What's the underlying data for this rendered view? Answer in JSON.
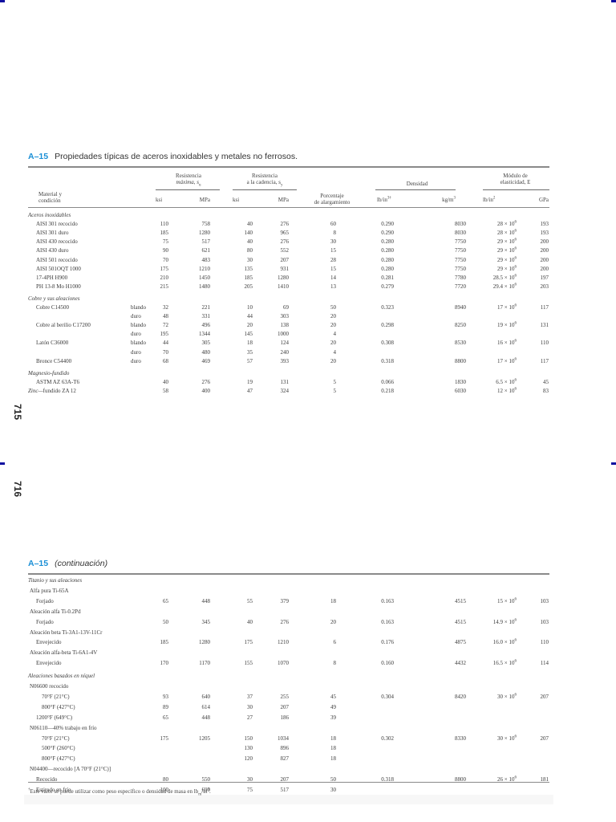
{
  "page_numbers": {
    "first": "715",
    "second": "716"
  },
  "table1": {
    "number": "A–15",
    "title": "Propiedades típicas de aceros inoxidables y metales no ferrosos.",
    "headers": {
      "material": [
        "Material y",
        "condición"
      ],
      "tensile": [
        "Resistencia",
        "máxima, s",
        "u"
      ],
      "yield": [
        "Resistencia",
        "a la cadencia, s",
        "y"
      ],
      "elong": [
        "Porcentaje",
        "de alargamiento"
      ],
      "density": "Densidad",
      "modulus": [
        "Módulo de",
        "elasticidad, E"
      ],
      "units": {
        "ksi1": "ksi",
        "mpa1": "MPa",
        "ksi2": "ksi",
        "mpa2": "MPa",
        "lbin3": "lb/in",
        "lbin3_sup": "3†",
        "kgm3": "kg/m",
        "kgm3_sup": "3",
        "lbin2": "lb/in",
        "lbin2_sup": "2",
        "gpa": "GPa"
      }
    },
    "rows": [
      {
        "type": "group",
        "label": "Aceros inoxidables"
      },
      {
        "material": "AISI 301 recocido",
        "cond": "",
        "su_ksi": "110",
        "su_mpa": "758",
        "sy_ksi": "40",
        "sy_mpa": "276",
        "elong": "60",
        "d_lb": "0.290",
        "d_kg": "8030",
        "e_psi": "28 × 10",
        "e_gpa": "193"
      },
      {
        "material": "AISI 301 duro",
        "cond": "",
        "su_ksi": "185",
        "su_mpa": "1280",
        "sy_ksi": "140",
        "sy_mpa": "965",
        "elong": "8",
        "d_lb": "0.290",
        "d_kg": "8030",
        "e_psi": "28 × 10",
        "e_gpa": "193"
      },
      {
        "material": "AISI 430 recocido",
        "cond": "",
        "su_ksi": "75",
        "su_mpa": "517",
        "sy_ksi": "40",
        "sy_mpa": "276",
        "elong": "30",
        "d_lb": "0.280",
        "d_kg": "7750",
        "e_psi": "29 × 10",
        "e_gpa": "200"
      },
      {
        "material": "AISI 430 duro",
        "cond": "",
        "su_ksi": "90",
        "su_mpa": "621",
        "sy_ksi": "80",
        "sy_mpa": "552",
        "elong": "15",
        "d_lb": "0.280",
        "d_kg": "7750",
        "e_psi": "29 × 10",
        "e_gpa": "200"
      },
      {
        "material": "AISI 501 recocido",
        "cond": "",
        "su_ksi": "70",
        "su_mpa": "483",
        "sy_ksi": "30",
        "sy_mpa": "207",
        "elong": "28",
        "d_lb": "0.280",
        "d_kg": "7750",
        "e_psi": "29 × 10",
        "e_gpa": "200"
      },
      {
        "material": "AISI 501OQT 1000",
        "cond": "",
        "su_ksi": "175",
        "su_mpa": "1210",
        "sy_ksi": "135",
        "sy_mpa": "931",
        "elong": "15",
        "d_lb": "0.280",
        "d_kg": "7750",
        "e_psi": "29 × 10",
        "e_gpa": "200"
      },
      {
        "material": "17-4PH H900",
        "cond": "",
        "su_ksi": "210",
        "su_mpa": "1450",
        "sy_ksi": "185",
        "sy_mpa": "1280",
        "elong": "14",
        "d_lb": "0.281",
        "d_kg": "7780",
        "e_psi": "28.5 × 10",
        "e_gpa": "197"
      },
      {
        "material": "PH 13-8 Mo H1000",
        "cond": "",
        "su_ksi": "215",
        "su_mpa": "1480",
        "sy_ksi": "205",
        "sy_mpa": "1410",
        "elong": "13",
        "d_lb": "0.279",
        "d_kg": "7720",
        "e_psi": "29.4 × 10",
        "e_gpa": "203"
      },
      {
        "type": "group",
        "label": "Cobre y sus aleaciones"
      },
      {
        "material": "Cobre C14500",
        "cond": "blando",
        "su_ksi": "32",
        "su_mpa": "221",
        "sy_ksi": "10",
        "sy_mpa": "69",
        "elong": "50",
        "d_lb": "0.323",
        "d_kg": "8940",
        "e_psi": "17 × 10",
        "e_gpa": "117"
      },
      {
        "material": "",
        "cond": "duro",
        "su_ksi": "48",
        "su_mpa": "331",
        "sy_ksi": "44",
        "sy_mpa": "303",
        "elong": "20",
        "d_lb": "",
        "d_kg": "",
        "e_psi": "",
        "e_gpa": ""
      },
      {
        "material": "Cobre al berilio C17200",
        "cond": "blando",
        "su_ksi": "72",
        "su_mpa": "496",
        "sy_ksi": "20",
        "sy_mpa": "138",
        "elong": "20",
        "d_lb": "0.298",
        "d_kg": "8250",
        "e_psi": "19 × 10",
        "e_gpa": "131"
      },
      {
        "material": "",
        "cond": "duro",
        "su_ksi": "195",
        "su_mpa": "1344",
        "sy_ksi": "145",
        "sy_mpa": "1000",
        "elong": "4",
        "d_lb": "",
        "d_kg": "",
        "e_psi": "",
        "e_gpa": ""
      },
      {
        "material": "Latón C36000",
        "cond": "blando",
        "su_ksi": "44",
        "su_mpa": "305",
        "sy_ksi": "18",
        "sy_mpa": "124",
        "elong": "20",
        "d_lb": "0.308",
        "d_kg": "8530",
        "e_psi": "16 × 10",
        "e_gpa": "110"
      },
      {
        "material": "",
        "cond": "duro",
        "su_ksi": "70",
        "su_mpa": "480",
        "sy_ksi": "35",
        "sy_mpa": "240",
        "elong": "4",
        "d_lb": "",
        "d_kg": "",
        "e_psi": "",
        "e_gpa": ""
      },
      {
        "material": "Bronce C54400",
        "cond": "duro",
        "su_ksi": "68",
        "su_mpa": "469",
        "sy_ksi": "57",
        "sy_mpa": "393",
        "elong": "20",
        "d_lb": "0.318",
        "d_kg": "8800",
        "e_psi": "17 × 10",
        "e_gpa": "117"
      },
      {
        "type": "group",
        "label": "Magnesio-fundido"
      },
      {
        "material": "ASTM AZ 63A-T6",
        "cond": "",
        "su_ksi": "40",
        "su_mpa": "276",
        "sy_ksi": "19",
        "sy_mpa": "131",
        "elong": "5",
        "d_lb": "0.066",
        "d_kg": "1830",
        "e_psi": "6.5 × 10",
        "e_gpa": "45"
      },
      {
        "material": "fundido ZA 12",
        "group_prefix": "Zinc—",
        "cond": "",
        "su_ksi": "58",
        "su_mpa": "400",
        "sy_ksi": "47",
        "sy_mpa": "324",
        "elong": "5",
        "d_lb": "0.218",
        "d_kg": "6030",
        "e_psi": "12 × 10",
        "e_gpa": "83"
      }
    ]
  },
  "table2": {
    "number": "A–15",
    "title": "(continuación)",
    "rows": [
      {
        "type": "group",
        "label": "Titanio y sus aleaciones"
      },
      {
        "type": "sub",
        "label": "Alfa pura Ti-65A"
      },
      {
        "material": "Forjado",
        "su_ksi": "65",
        "su_mpa": "448",
        "sy_ksi": "55",
        "sy_mpa": "379",
        "elong": "18",
        "d_lb": "0.163",
        "d_kg": "4515",
        "e_psi": "15 × 10",
        "e_gpa": "103"
      },
      {
        "type": "sub",
        "label": "Aleación alfa Ti-0.2Pd"
      },
      {
        "material": "Forjado",
        "su_ksi": "50",
        "su_mpa": "345",
        "sy_ksi": "40",
        "sy_mpa": "276",
        "elong": "20",
        "d_lb": "0.163",
        "d_kg": "4515",
        "e_psi": "14.9 × 10",
        "e_gpa": "103"
      },
      {
        "type": "sub",
        "label": "Aleación beta Ti-3A1-13V-11Cr"
      },
      {
        "material": "Envejecido",
        "su_ksi": "185",
        "su_mpa": "1280",
        "sy_ksi": "175",
        "sy_mpa": "1210",
        "elong": "6",
        "d_lb": "0.176",
        "d_kg": "4875",
        "e_psi": "16.0 × 10",
        "e_gpa": "110"
      },
      {
        "type": "sub",
        "label": "Aleación alfa-beta Ti-6A1-4V"
      },
      {
        "material": "Envejecido",
        "su_ksi": "170",
        "su_mpa": "1170",
        "sy_ksi": "155",
        "sy_mpa": "1070",
        "elong": "8",
        "d_lb": "0.160",
        "d_kg": "4432",
        "e_psi": "16.5 × 10",
        "e_gpa": "114"
      },
      {
        "type": "group",
        "label": "Aleaciones basados en níquel"
      },
      {
        "type": "sub",
        "label": "N06600 recocido"
      },
      {
        "material": "70°F (21°C)",
        "su_ksi": "93",
        "su_mpa": "640",
        "sy_ksi": "37",
        "sy_mpa": "255",
        "elong": "45",
        "d_lb": "0.304",
        "d_kg": "8420",
        "e_psi": "30 × 10",
        "e_gpa": "207"
      },
      {
        "material": "800°F (427°C)",
        "su_ksi": "89",
        "su_mpa": "614",
        "sy_ksi": "30",
        "sy_mpa": "207",
        "elong": "49",
        "d_lb": "",
        "d_kg": "",
        "e_psi": "",
        "e_gpa": ""
      },
      {
        "material": "1200°F (649°C)",
        "su_ksi": "65",
        "su_mpa": "448",
        "sy_ksi": "27",
        "sy_mpa": "186",
        "elong": "39",
        "d_lb": "",
        "d_kg": "",
        "e_psi": "",
        "e_gpa": ""
      },
      {
        "type": "sub",
        "label": "N06110—40% trabajo en frío"
      },
      {
        "material": "70°F (21°C)",
        "su_ksi": "175",
        "su_mpa": "1205",
        "sy_ksi": "150",
        "sy_mpa": "1034",
        "elong": "18",
        "d_lb": "0.302",
        "d_kg": "8330",
        "e_psi": "30 × 10",
        "e_gpa": "207"
      },
      {
        "material": "500°F (260°C)",
        "su_ksi": "",
        "su_mpa": "",
        "sy_ksi": "130",
        "sy_mpa": "896",
        "elong": "18",
        "d_lb": "",
        "d_kg": "",
        "e_psi": "",
        "e_gpa": ""
      },
      {
        "material": "800°F (427°C)",
        "su_ksi": "",
        "su_mpa": "",
        "sy_ksi": "120",
        "sy_mpa": "827",
        "elong": "18",
        "d_lb": "",
        "d_kg": "",
        "e_psi": "",
        "e_gpa": ""
      },
      {
        "type": "sub",
        "label": "N04400—recocido [A 70°F (21°C)]"
      },
      {
        "material": "Recocido",
        "su_ksi": "80",
        "su_mpa": "550",
        "sy_ksi": "30",
        "sy_mpa": "207",
        "elong": "50",
        "d_lb": "0.318",
        "d_kg": "8800",
        "e_psi": "26 × 10",
        "e_gpa": "181"
      },
      {
        "material": "Estirado en frío",
        "su_ksi": "100",
        "su_mpa": "690",
        "sy_ksi": "75",
        "sy_mpa": "517",
        "elong": "30",
        "d_lb": "",
        "d_kg": "",
        "e_psi": "",
        "e_gpa": ""
      }
    ],
    "footnote": "Este valor se puede utilizar como peso específico o densidad de masa en lb",
    "footnote_mark": "†",
    "footnote_sub": "m",
    "footnote_tail": "/in",
    "footnote_sup": "3",
    "footnote_end": "."
  },
  "exponent": "6"
}
